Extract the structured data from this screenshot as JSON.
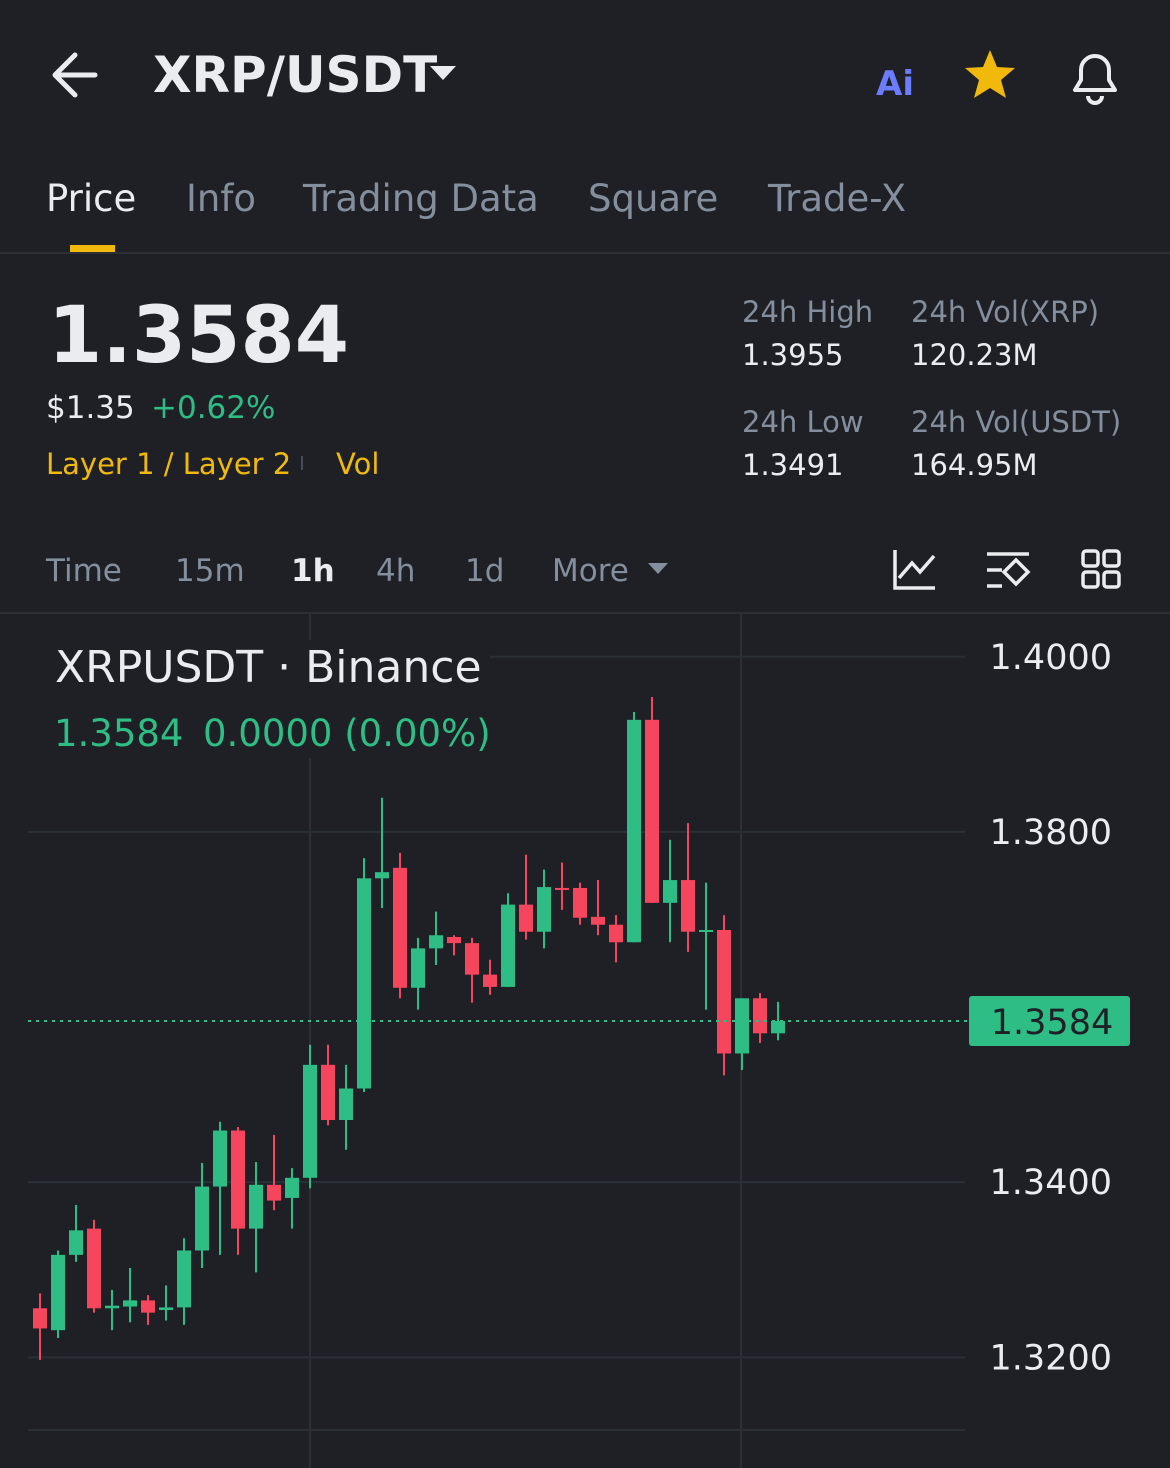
{
  "header": {
    "title": "XRP/USDT",
    "ai_label": "Ai"
  },
  "tabs": [
    "Price",
    "Info",
    "Trading Data",
    "Square",
    "Trade-X"
  ],
  "summary": {
    "price": "1.3584",
    "usd": "$1.35",
    "change": "+0.62%",
    "tags": [
      "Layer 1 / Layer 2",
      "Vol"
    ]
  },
  "stats": [
    {
      "label": "24h High",
      "value": "1.3955"
    },
    {
      "label": "24h Vol(XRP)",
      "value": "120.23M"
    },
    {
      "label": "24h Low",
      "value": "1.3491"
    },
    {
      "label": "24h Vol(USDT)",
      "value": "164.95M"
    }
  ],
  "intervals": [
    "Time",
    "15m",
    "1h",
    "4h",
    "1d",
    "More"
  ],
  "chart_data": {
    "type": "candlestick",
    "title": "XRPUSDT · Binance",
    "legend": {
      "price": "1.3584",
      "change": "0.0000 (0.00%)"
    },
    "up_color": "#2ebd85",
    "down_color": "#f6465d",
    "open": [
      1.3256,
      1.3231,
      1.3317,
      1.3347,
      1.3256,
      1.3258,
      1.3265,
      1.3254,
      1.3257,
      1.3322,
      1.3395,
      1.3459,
      1.3347,
      1.3397,
      1.3382,
      1.3405,
      1.3534,
      1.3471,
      1.3507,
      1.3747,
      1.3759,
      1.3622,
      1.3667,
      1.368,
      1.3673,
      1.3637,
      1.3623,
      1.3717,
      1.3686,
      1.3736,
      1.3736,
      1.3703,
      1.3694,
      1.3674,
      1.3928,
      1.3719,
      1.3745,
      1.3686,
      1.3688,
      1.3547,
      1.361,
      1.357
    ],
    "high": [
      1.3273,
      1.3322,
      1.3374,
      1.3357,
      1.3277,
      1.3302,
      1.3271,
      1.3282,
      1.3336,
      1.3422,
      1.3469,
      1.3463,
      1.3423,
      1.3454,
      1.3416,
      1.3557,
      1.3557,
      1.3534,
      1.377,
      1.3839,
      1.3776,
      1.3679,
      1.3709,
      1.3682,
      1.3679,
      1.3654,
      1.373,
      1.3774,
      1.3757,
      1.3765,
      1.3742,
      1.3745,
      1.3705,
      1.3937,
      1.3954,
      1.3791,
      1.381,
      1.3742,
      1.3705,
      1.361,
      1.3616,
      1.3606
    ],
    "low": [
      1.3197,
      1.3222,
      1.3309,
      1.3251,
      1.3231,
      1.324,
      1.3237,
      1.3242,
      1.3237,
      1.3302,
      1.3317,
      1.3317,
      1.3297,
      1.3368,
      1.3347,
      1.3393,
      1.3465,
      1.3437,
      1.3503,
      1.3713,
      1.361,
      1.3597,
      1.3648,
      1.3659,
      1.3605,
      1.3614,
      1.3623,
      1.3677,
      1.3667,
      1.3711,
      1.3694,
      1.3682,
      1.3651,
      1.3674,
      1.3719,
      1.3674,
      1.3663,
      1.3597,
      1.3522,
      1.3528,
      1.3559,
      1.3562
    ],
    "close": [
      1.3233,
      1.3317,
      1.3345,
      1.3256,
      1.3259,
      1.3265,
      1.3251,
      1.3257,
      1.3322,
      1.3395,
      1.3459,
      1.3347,
      1.3397,
      1.3379,
      1.3405,
      1.3534,
      1.3471,
      1.3507,
      1.3747,
      1.3754,
      1.3622,
      1.3667,
      1.3682,
      1.3673,
      1.3637,
      1.3623,
      1.3717,
      1.3686,
      1.3737,
      1.3734,
      1.3702,
      1.3694,
      1.3674,
      1.3928,
      1.3719,
      1.3745,
      1.3686,
      1.3688,
      1.3547,
      1.361,
      1.357,
      1.3584
    ],
    "ylim": [
      1.3117,
      1.4042
    ],
    "yticks": [
      {
        "value": 1.32,
        "label": "1.3200"
      },
      {
        "value": 1.34,
        "label": "1.3400"
      },
      {
        "value": 1.38,
        "label": "1.3800"
      },
      {
        "value": 1.4,
        "label": "1.4000"
      }
    ],
    "grid": true,
    "last_price": 1.3584
  }
}
